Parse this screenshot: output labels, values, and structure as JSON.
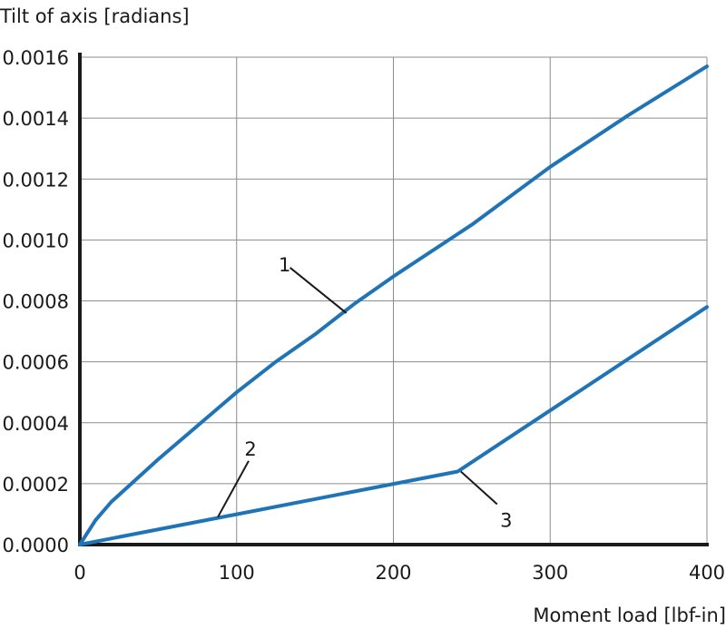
{
  "chart_data": {
    "type": "line",
    "ylabel": "Tilt of axis [radians]",
    "xlabel": "Moment load [lbf-in]",
    "xlim": [
      0,
      400
    ],
    "ylim": [
      0,
      0.0016
    ],
    "x_ticks": [
      0,
      100,
      200,
      300,
      400
    ],
    "y_ticks": [
      0,
      0.0002,
      0.0004,
      0.0006,
      0.0008,
      0.001,
      0.0012,
      0.0014,
      0.0016
    ],
    "x_tick_labels": [
      "0",
      "100",
      "200",
      "300",
      "400"
    ],
    "y_tick_labels": [
      "0.0000",
      "0.0002",
      "0.0004",
      "0.0006",
      "0.0008",
      "0.0010",
      "0.0012",
      "0.0014",
      "0.0016"
    ],
    "grid": true,
    "line_color": "#1f74b8",
    "series": [
      {
        "x": [
          0,
          10,
          20,
          35,
          50,
          75,
          100,
          125,
          150,
          175,
          200,
          250,
          300,
          350,
          400
        ],
        "y": [
          0,
          8e-05,
          0.00014,
          0.00021,
          0.00028,
          0.00039,
          0.0005,
          0.0006,
          0.00069,
          0.00079,
          0.00088,
          0.00105,
          0.00124,
          0.00141,
          0.00157
        ]
      },
      {
        "x": [
          0,
          241,
          400
        ],
        "y": [
          0,
          0.00024,
          0.00078
        ]
      }
    ],
    "annotations": [
      {
        "label": "1",
        "x": 170,
        "y": 0.00076
      },
      {
        "label": "2",
        "x": 88,
        "y": 9e-05
      },
      {
        "label": "3",
        "x": 243,
        "y": 0.00024
      }
    ]
  }
}
